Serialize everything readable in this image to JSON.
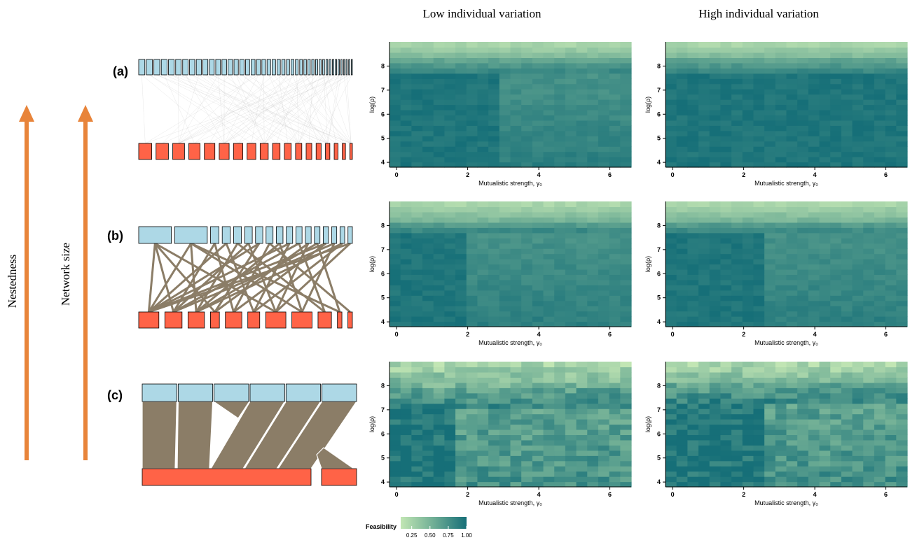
{
  "column_titles": [
    "Low individual variation",
    "High individual variation"
  ],
  "row_labels": [
    "(a)",
    "(b)",
    "(c)"
  ],
  "side_labels": {
    "nestedness": "Nestedness",
    "network_size": "Network size"
  },
  "colors": {
    "arrow": "#E8843A",
    "top_nodes": "#ADD8E6",
    "bottom_nodes": "#FF6347",
    "links": "#8B7D67",
    "low": "#C2E6B4",
    "high": "#166F78"
  },
  "legend": {
    "title": "Feasibility",
    "ticks": [
      "0.25",
      "0.50",
      "0.75",
      "1.00"
    ],
    "min": 0.1,
    "max": 1.0
  },
  "networks": [
    {
      "row": "(a)",
      "top_count": 44,
      "bottom_count": 18,
      "link_density": "sparse"
    },
    {
      "row": "(b)",
      "top_count": 17,
      "bottom_count": 11,
      "link_density": "medium"
    },
    {
      "row": "(c)",
      "top_count": 6,
      "bottom_count": 2,
      "link_density": "dense"
    }
  ],
  "chart_data": [
    {
      "type": "heatmap",
      "row": "(a)",
      "column": "Low individual variation",
      "xlabel": "Mutualistic strength, γ₀",
      "ylabel": "log(ρ)",
      "xlim": [
        -0.2,
        6.6
      ],
      "ylim": [
        3.8,
        9.0
      ],
      "xticks": [
        "0",
        "2",
        "4",
        "6"
      ],
      "yticks": [
        "4",
        "5",
        "6",
        "7",
        "8"
      ],
      "threshold_gamma": 2.9,
      "shoulder_logrho": 7.7,
      "upper_band_logrho": 8.3
    },
    {
      "type": "heatmap",
      "row": "(a)",
      "column": "High individual variation",
      "xlabel": "Mutualistic strength, γ₀",
      "ylabel": "log(ρ)",
      "xlim": [
        -0.2,
        6.6
      ],
      "ylim": [
        3.8,
        9.0
      ],
      "xticks": [
        "0",
        "2",
        "4",
        "6"
      ],
      "yticks": [
        "4",
        "5",
        "6",
        "7",
        "8"
      ],
      "threshold_gamma": 6.6,
      "shoulder_logrho": 7.7,
      "upper_band_logrho": 8.3
    },
    {
      "type": "heatmap",
      "row": "(b)",
      "column": "Low individual variation",
      "xlabel": "Mutualistic strength, γ₀",
      "ylabel": "log(ρ)",
      "xlim": [
        -0.2,
        6.6
      ],
      "ylim": [
        3.8,
        9.0
      ],
      "xticks": [
        "0",
        "2",
        "4",
        "6"
      ],
      "yticks": [
        "4",
        "5",
        "6",
        "7",
        "8"
      ],
      "threshold_gamma": 1.9,
      "shoulder_logrho": 7.7,
      "upper_band_logrho": 8.2
    },
    {
      "type": "heatmap",
      "row": "(b)",
      "column": "High individual variation",
      "xlabel": "Mutualistic strength, γ₀",
      "ylabel": "log(ρ)",
      "xlim": [
        -0.2,
        6.6
      ],
      "ylim": [
        3.8,
        9.0
      ],
      "xticks": [
        "0",
        "2",
        "4",
        "6"
      ],
      "yticks": [
        "4",
        "5",
        "6",
        "7",
        "8"
      ],
      "threshold_gamma": 2.7,
      "shoulder_logrho": 7.7,
      "upper_band_logrho": 8.2
    },
    {
      "type": "heatmap",
      "row": "(c)",
      "column": "Low individual variation",
      "xlabel": "Mutualistic strength, γ₀",
      "ylabel": "log(ρ)",
      "xlim": [
        -0.2,
        6.6
      ],
      "ylim": [
        3.8,
        9.0
      ],
      "xticks": [
        "0",
        "2",
        "4",
        "6"
      ],
      "yticks": [
        "4",
        "5",
        "6",
        "7",
        "8"
      ],
      "threshold_gamma": 1.8,
      "shoulder_logrho": 7.0,
      "upper_band_logrho": 8.0
    },
    {
      "type": "heatmap",
      "row": "(c)",
      "column": "High individual variation",
      "xlabel": "Mutualistic strength, γ₀",
      "ylabel": "log(ρ)",
      "xlim": [
        -0.2,
        6.6
      ],
      "ylim": [
        3.8,
        9.0
      ],
      "xticks": [
        "0",
        "2",
        "4",
        "6"
      ],
      "yticks": [
        "4",
        "5",
        "6",
        "7",
        "8"
      ],
      "threshold_gamma": 2.5,
      "shoulder_logrho": 7.3,
      "upper_band_logrho": 8.1
    }
  ]
}
